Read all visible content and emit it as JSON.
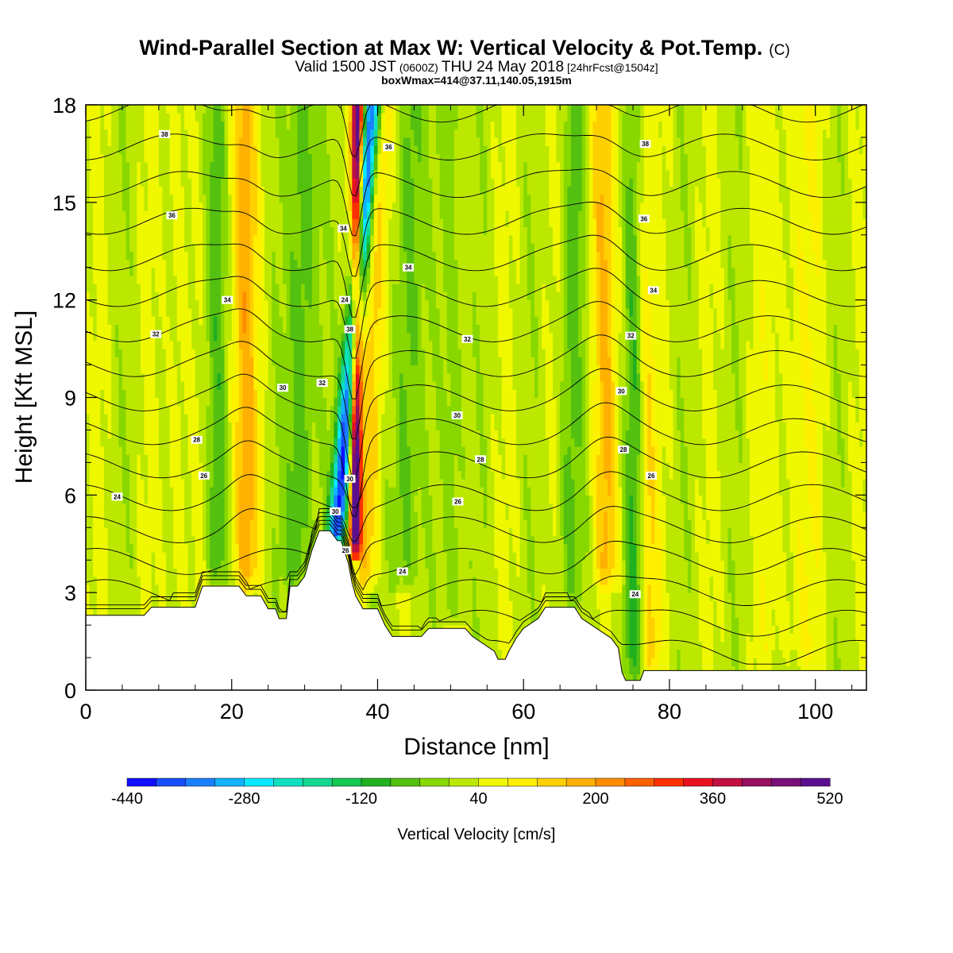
{
  "chart_data": {
    "type": "contour",
    "title": "Wind-Parallel Section at Max W: Vertical Velocity & Pot.Temp.",
    "title_unit": "(C)",
    "subtitle_line1_a": "Valid 1500 JST",
    "subtitle_line1_b": "(0600Z)",
    "subtitle_line1_c": "THU 24 May 2018",
    "subtitle_line1_d": "[24hrFcst@1504z]",
    "subtitle_line2": "boxWmax=414@37.11,140.05,1915m",
    "xlabel": "Distance [nm]",
    "ylabel": "Height [Kft MSL]",
    "xlim": [
      0,
      107
    ],
    "ylim": [
      0,
      18
    ],
    "x_ticks": [
      0,
      20,
      40,
      60,
      80,
      100
    ],
    "y_ticks": [
      0,
      3,
      6,
      9,
      12,
      15,
      18
    ],
    "colorbar": {
      "label": "Vertical Velocity [cm/s]",
      "min": -440,
      "step": 40,
      "tick_labels": [
        -440,
        -280,
        -120,
        40,
        200,
        360,
        520
      ],
      "colors": [
        "#1010ff",
        "#1850ff",
        "#1a80ff",
        "#10b4ff",
        "#0ce8ff",
        "#10e0c0",
        "#14d890",
        "#14c850",
        "#20b020",
        "#54c010",
        "#88d800",
        "#bce800",
        "#f0f800",
        "#fff000",
        "#ffd000",
        "#ffb000",
        "#ff8c00",
        "#ff6000",
        "#ff3000",
        "#e81020",
        "#c01040",
        "#981060",
        "#781078",
        "#5a108e"
      ]
    },
    "terrain_profile": [
      [
        0,
        2.3
      ],
      [
        8,
        2.3
      ],
      [
        9,
        2.55
      ],
      [
        15,
        2.55
      ],
      [
        16,
        3.2
      ],
      [
        21,
        3.2
      ],
      [
        22,
        2.9
      ],
      [
        24,
        2.9
      ],
      [
        25,
        2.5
      ],
      [
        26,
        2.5
      ],
      [
        26.5,
        2.2
      ],
      [
        27.5,
        2.2
      ],
      [
        28,
        3.2
      ],
      [
        29,
        3.2
      ],
      [
        30,
        3.5
      ],
      [
        31,
        4.3
      ],
      [
        32,
        4.9
      ],
      [
        33.5,
        4.9
      ],
      [
        34.5,
        4.6
      ],
      [
        35,
        4.6
      ],
      [
        36,
        3.9
      ],
      [
        36.5,
        3.3
      ],
      [
        37,
        2.9
      ],
      [
        38,
        2.5
      ],
      [
        40,
        2.5
      ],
      [
        41,
        2.0
      ],
      [
        42,
        1.65
      ],
      [
        46,
        1.65
      ],
      [
        47,
        1.9
      ],
      [
        52,
        1.9
      ],
      [
        53,
        1.65
      ],
      [
        56,
        1.2
      ],
      [
        56.5,
        0.95
      ],
      [
        57.5,
        0.95
      ],
      [
        58,
        1.2
      ],
      [
        59,
        1.6
      ],
      [
        60,
        1.9
      ],
      [
        62,
        2.2
      ],
      [
        63,
        2.55
      ],
      [
        67,
        2.55
      ],
      [
        68,
        2.2
      ],
      [
        70,
        1.9
      ],
      [
        72,
        1.6
      ],
      [
        73,
        1.3
      ],
      [
        73.5,
        0.55
      ],
      [
        74,
        0.3
      ],
      [
        76,
        0.3
      ],
      [
        76.5,
        0.6
      ],
      [
        107,
        0.6
      ]
    ],
    "w_features": [
      {
        "x": 36.9,
        "y0": 4.0,
        "x_top": 37.3,
        "amplitude": 500,
        "width": 0.8
      },
      {
        "x": 34.2,
        "y0": 4.2,
        "x_top": 39.3,
        "amplitude": -440,
        "width": 1.2
      },
      {
        "x": 22.0,
        "y0": 3.0,
        "x_top": 21.5,
        "amplitude": 140,
        "width": 1.8
      },
      {
        "x": 38.5,
        "y0": 3.0,
        "x_top": 40.5,
        "amplitude": 130,
        "width": 1.5
      },
      {
        "x": 71.5,
        "y0": 3.0,
        "x_top": 70.5,
        "amplitude": 120,
        "width": 1.6
      },
      {
        "x": 77.5,
        "y0": 0.3,
        "x_top": 76.0,
        "amplitude": 100,
        "width": 1.2
      },
      {
        "x": 29.0,
        "y0": 3.0,
        "x_top": 30.0,
        "amplitude": -110,
        "width": 2.0
      },
      {
        "x": 43.5,
        "y0": 3.0,
        "x_top": 44.5,
        "amplitude": -100,
        "width": 1.8
      },
      {
        "x": 18.0,
        "y0": 3.2,
        "x_top": 17.5,
        "amplitude": -90,
        "width": 1.5
      },
      {
        "x": 75.0,
        "y0": 0.3,
        "x_top": 75.5,
        "amplitude": -100,
        "width": 1.4
      },
      {
        "x": 66.0,
        "y0": 2.5,
        "x_top": 67.0,
        "amplitude": -80,
        "width": 1.6
      },
      {
        "x": 50.5,
        "y0": 1.9,
        "x_top": 50.0,
        "amplitude": -70,
        "width": 1.5
      },
      {
        "x": 12.5,
        "y0": 2.3,
        "x_top": 12.5,
        "amplitude": 45,
        "width": 1.3
      },
      {
        "x": 97.0,
        "y0": 0.6,
        "x_top": 97.0,
        "amplitude": 40,
        "width": 4.0
      }
    ],
    "theta_levels": [
      22,
      23,
      24,
      25,
      26,
      27,
      28,
      29,
      30,
      31,
      32,
      33,
      34,
      35,
      36,
      37,
      38
    ],
    "theta_labels": [
      {
        "text": "24",
        "x": 4.3,
        "y": 5.95
      },
      {
        "text": "26",
        "x": 16.2,
        "y": 6.6
      },
      {
        "text": "28",
        "x": 15.2,
        "y": 7.7
      },
      {
        "text": "30",
        "x": 27.0,
        "y": 9.3
      },
      {
        "text": "32",
        "x": 9.6,
        "y": 10.95
      },
      {
        "text": "34",
        "x": 19.4,
        "y": 12.0
      },
      {
        "text": "36",
        "x": 11.8,
        "y": 14.6
      },
      {
        "text": "38",
        "x": 10.8,
        "y": 17.1
      },
      {
        "text": "32",
        "x": 32.4,
        "y": 9.45
      },
      {
        "text": "24",
        "x": 35.5,
        "y": 12.0
      },
      {
        "text": "34",
        "x": 35.3,
        "y": 14.2
      },
      {
        "text": "38",
        "x": 36.2,
        "y": 11.1
      },
      {
        "text": "30",
        "x": 36.2,
        "y": 6.5
      },
      {
        "text": "30",
        "x": 34.2,
        "y": 5.5
      },
      {
        "text": "26",
        "x": 35.6,
        "y": 4.3
      },
      {
        "text": "36",
        "x": 41.5,
        "y": 16.7
      },
      {
        "text": "34",
        "x": 44.2,
        "y": 13.0
      },
      {
        "text": "32",
        "x": 52.3,
        "y": 10.8
      },
      {
        "text": "30",
        "x": 50.9,
        "y": 8.45
      },
      {
        "text": "28",
        "x": 54.1,
        "y": 7.1
      },
      {
        "text": "26",
        "x": 51.0,
        "y": 5.8
      },
      {
        "text": "24",
        "x": 43.4,
        "y": 3.65
      },
      {
        "text": "38",
        "x": 76.7,
        "y": 16.8
      },
      {
        "text": "36",
        "x": 76.5,
        "y": 14.5
      },
      {
        "text": "34",
        "x": 77.8,
        "y": 12.3
      },
      {
        "text": "32",
        "x": 74.7,
        "y": 10.9
      },
      {
        "text": "30",
        "x": 73.4,
        "y": 9.2
      },
      {
        "text": "28",
        "x": 73.7,
        "y": 7.4
      },
      {
        "text": "26",
        "x": 77.5,
        "y": 6.6
      },
      {
        "text": "24",
        "x": 75.3,
        "y": 2.95
      }
    ]
  }
}
